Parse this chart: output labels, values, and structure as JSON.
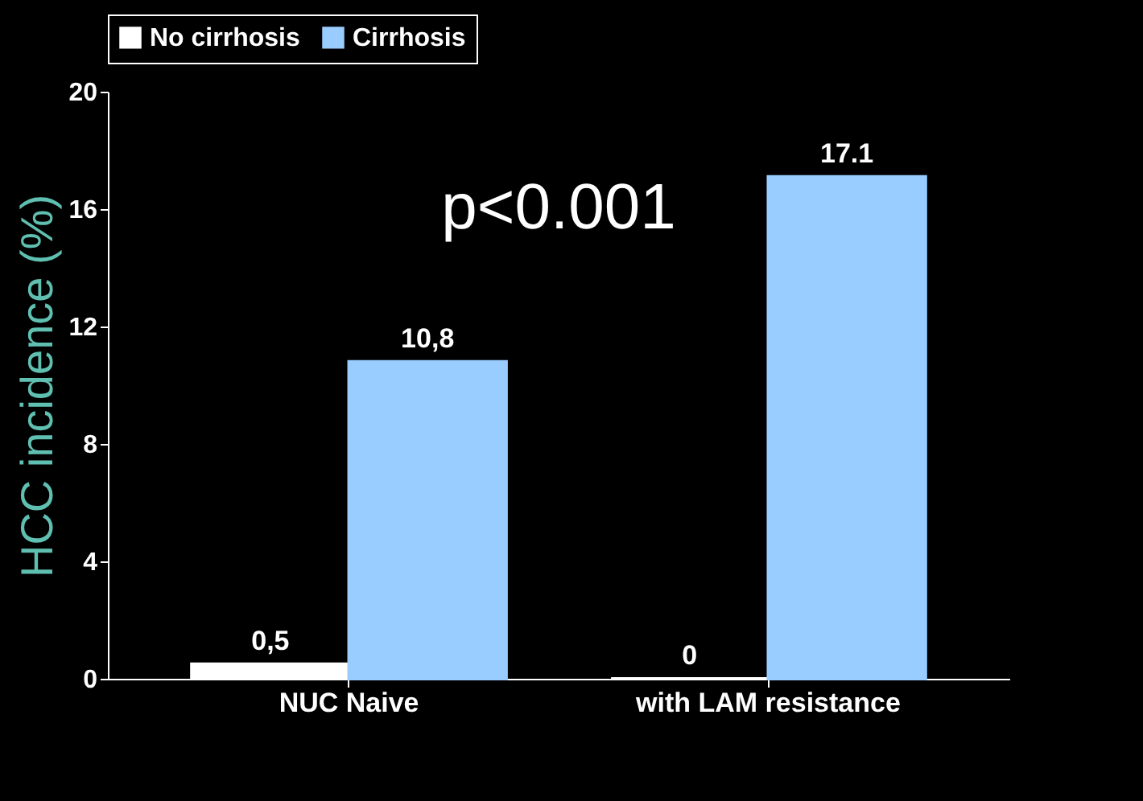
{
  "chart_data": {
    "type": "bar",
    "ylabel": "HCC incidence (%)",
    "categories": [
      "NUC Naive",
      "with LAM resistance"
    ],
    "series": [
      {
        "name": "No cirrhosis",
        "color": "#ffffff",
        "values": [
          0.5,
          0
        ],
        "value_labels": [
          "0,5",
          "0"
        ]
      },
      {
        "name": "Cirrhosis",
        "color": "#99ccff",
        "values": [
          10.8,
          17.1
        ],
        "value_labels": [
          "10,8",
          "17.1"
        ]
      }
    ],
    "ylim": [
      0,
      20
    ],
    "yticks": [
      0,
      4,
      8,
      12,
      16,
      20
    ],
    "grid": false,
    "legend": "top",
    "annotations": [
      "p<0.001"
    ]
  }
}
